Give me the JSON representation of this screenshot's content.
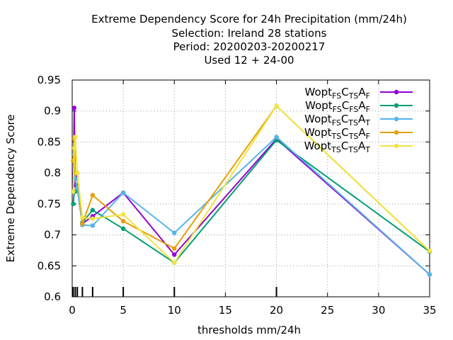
{
  "chart_data": {
    "type": "line",
    "title_lines": [
      "Extreme Dependency Score  for 24h Precipitation (mm/24h)",
      "Selection: Ireland     28 stations",
      "Period: 20200203-20200217",
      "Used  12 + 24-00"
    ],
    "xlabel": "thresholds mm/24h",
    "ylabel": "Extreme Dependency Score",
    "xlim": [
      0,
      35
    ],
    "ylim": [
      0.6,
      0.95
    ],
    "xticks": [
      0,
      5,
      10,
      15,
      20,
      25,
      30,
      35
    ],
    "yticks": [
      0.6,
      0.65,
      0.7,
      0.75,
      0.8,
      0.85,
      0.9,
      0.95
    ],
    "ytick_labels": [
      "0.6",
      "0.65",
      "0.7",
      "0.75",
      "0.8",
      "0.85",
      "0.9",
      "0.95"
    ],
    "threshold_marks": [
      0.1,
      0.3,
      0.5,
      1,
      2,
      5,
      10,
      20
    ],
    "grid": true,
    "legend_position": "top-right",
    "x": [
      0.1,
      0.2,
      0.3,
      0.5,
      1,
      2,
      5,
      10,
      20,
      35
    ],
    "series": [
      {
        "legend": [
          {
            "t": "Wopt",
            "s": false
          },
          {
            "t": "FS",
            "s": true
          },
          {
            "t": "C",
            "s": false
          },
          {
            "t": "TS",
            "s": true
          },
          {
            "t": "A",
            "s": false
          },
          {
            "t": "F",
            "s": true
          }
        ],
        "color": "#9400d3",
        "values": [
          0.77,
          0.905,
          0.78,
          0.8,
          0.718,
          0.73,
          0.768,
          0.668,
          0.855,
          0.636
        ]
      },
      {
        "legend": [
          {
            "t": "Wopt",
            "s": false
          },
          {
            "t": "FS",
            "s": true
          },
          {
            "t": "C",
            "s": false
          },
          {
            "t": "FS",
            "s": true
          },
          {
            "t": "A",
            "s": false
          },
          {
            "t": "F",
            "s": true
          }
        ],
        "color": "#009e73",
        "values": [
          0.75,
          0.77,
          0.77,
          0.78,
          0.72,
          0.74,
          0.71,
          0.655,
          0.853,
          0.673
        ]
      },
      {
        "legend": [
          {
            "t": "Wopt",
            "s": false
          },
          {
            "t": "FS",
            "s": true
          },
          {
            "t": "C",
            "s": false
          },
          {
            "t": "TS",
            "s": true
          },
          {
            "t": "A",
            "s": false
          },
          {
            "t": "T",
            "s": true
          }
        ],
        "color": "#56b4e9",
        "values": [
          0.77,
          0.83,
          0.79,
          0.775,
          0.716,
          0.715,
          0.768,
          0.703,
          0.858,
          0.636
        ]
      },
      {
        "legend": [
          {
            "t": "Wopt",
            "s": false
          },
          {
            "t": "TS",
            "s": true
          },
          {
            "t": "C",
            "s": false
          },
          {
            "t": "TS",
            "s": true
          },
          {
            "t": "A",
            "s": false
          },
          {
            "t": "F",
            "s": true
          }
        ],
        "color": "#e69f00",
        "values": [
          0.82,
          0.855,
          0.8,
          0.8,
          0.718,
          0.764,
          0.722,
          0.678,
          0.908,
          0.674
        ]
      },
      {
        "legend": [
          {
            "t": "Wopt",
            "s": false
          },
          {
            "t": "TS",
            "s": true
          },
          {
            "t": "C",
            "s": false
          },
          {
            "t": "TS",
            "s": true
          },
          {
            "t": "A",
            "s": false
          },
          {
            "t": "T",
            "s": true
          }
        ],
        "color": "#f0e442",
        "values": [
          0.77,
          0.84,
          0.858,
          0.8,
          0.728,
          0.726,
          0.733,
          0.655,
          0.908,
          0.674
        ]
      }
    ]
  }
}
